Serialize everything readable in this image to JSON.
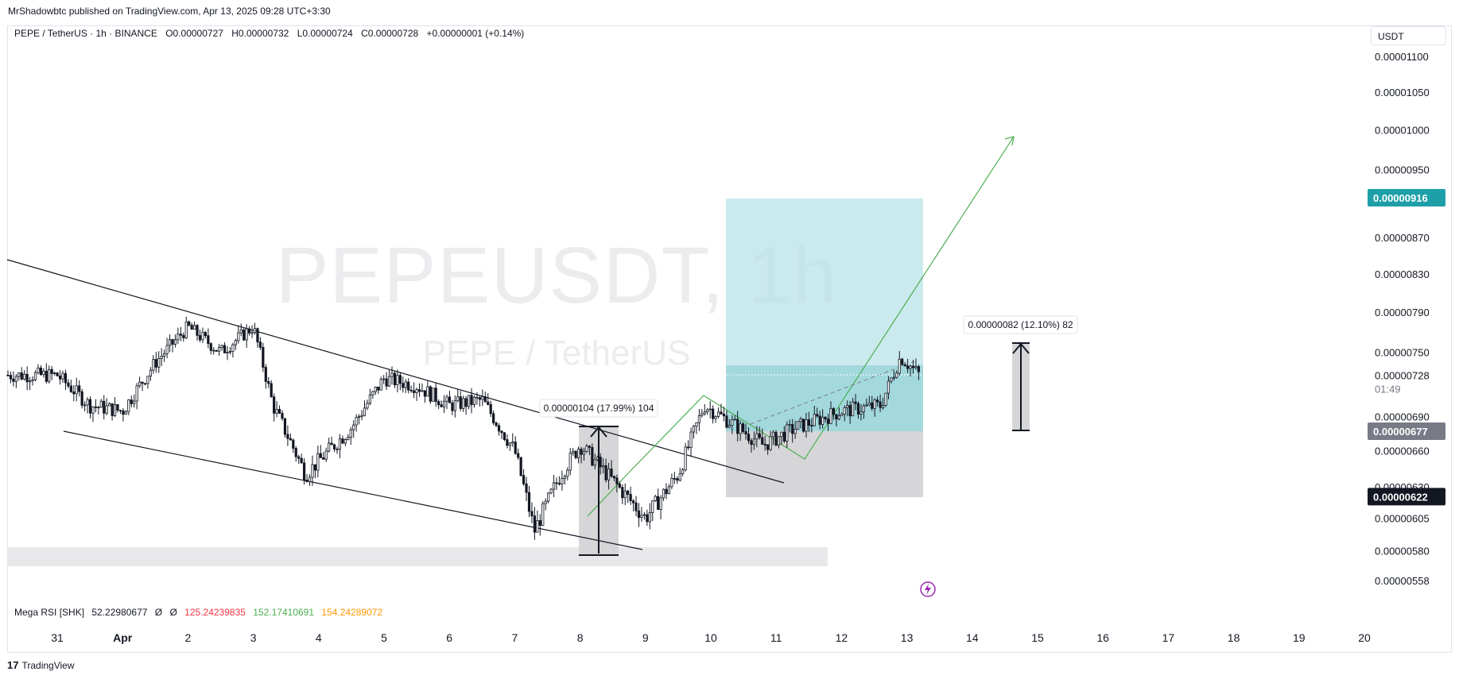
{
  "header": {
    "published": "MrShadowbtc published on TradingView.com, Apr 13, 2025 09:28 UTC+3:30"
  },
  "legend": {
    "symbol": "PEPE / TetherUS · 1h · BINANCE",
    "open": "O0.00000727",
    "high": "H0.00000732",
    "low": "L0.00000724",
    "close": "C0.00000728",
    "change": "+0.00000001 (+0.14%)"
  },
  "currency": "USDT",
  "watermark": {
    "main": "PEPEUSDT, 1h",
    "sub": "PEPE / TetherUS"
  },
  "chart_data": {
    "type": "candlestick",
    "symbol": "PEPEUSDT",
    "interval": "1h",
    "y_axis": {
      "ticks": [
        "0.00001100",
        "0.00001050",
        "0.00001000",
        "0.00000950",
        "0.00000870",
        "0.00000830",
        "0.00000790",
        "0.00000750",
        "0.00000728",
        "0.00000690",
        "0.00000660",
        "0.00000630",
        "0.00000605",
        "0.00000580",
        "0.00000558"
      ],
      "scale": "log"
    },
    "x_axis": {
      "ticks": [
        "31",
        "Apr",
        "2",
        "3",
        "4",
        "5",
        "6",
        "7",
        "8",
        "9",
        "10",
        "11",
        "12",
        "13",
        "14",
        "15",
        "16",
        "17",
        "18",
        "19",
        "20"
      ]
    },
    "price_tags": [
      {
        "value": "0.00000916",
        "color": "#1e9fa8"
      },
      {
        "value": "0.00000728",
        "sub": "01:49",
        "color": "#ffffff",
        "text_color": "#131722"
      },
      {
        "value": "0.00000677",
        "color": "#787b86"
      },
      {
        "value": "0.00000622",
        "color": "#131722"
      }
    ],
    "measurements": [
      {
        "text": "0.00000104 (17.99%) 104"
      },
      {
        "text": "0.00000082 (12.10%) 82"
      }
    ],
    "close_path": [
      {
        "t": "31",
        "v": 7.28e-06
      },
      {
        "t": "31.5",
        "v": 7e-06
      },
      {
        "t": "Apr",
        "v": 6.95e-06
      },
      {
        "t": "1.5",
        "v": 7.4e-06
      },
      {
        "t": "2",
        "v": 7.75e-06
      },
      {
        "t": "2.5",
        "v": 7.5e-06
      },
      {
        "t": "3",
        "v": 7.75e-06
      },
      {
        "t": "3.3",
        "v": 7e-06
      },
      {
        "t": "3.8",
        "v": 6.4e-06
      },
      {
        "t": "4.5",
        "v": 6.8e-06
      },
      {
        "t": "5",
        "v": 7.25e-06
      },
      {
        "t": "5.5",
        "v": 7.18e-06
      },
      {
        "t": "6",
        "v": 7e-06
      },
      {
        "t": "6.5",
        "v": 7.05e-06
      },
      {
        "t": "7",
        "v": 6.6e-06
      },
      {
        "t": "7.3",
        "v": 5.95e-06
      },
      {
        "t": "7.7",
        "v": 6.4e-06
      },
      {
        "t": "8",
        "v": 6.65e-06
      },
      {
        "t": "8.5",
        "v": 6.35e-06
      },
      {
        "t": "9",
        "v": 6.05e-06
      },
      {
        "t": "9.5",
        "v": 6.4e-06
      },
      {
        "t": "9.9",
        "v": 7e-06
      },
      {
        "t": "10.3",
        "v": 6.85e-06
      },
      {
        "t": "10.8",
        "v": 6.65e-06
      },
      {
        "t": "11.3",
        "v": 6.8e-06
      },
      {
        "t": "12",
        "v": 6.95e-06
      },
      {
        "t": "12.6",
        "v": 7e-06
      },
      {
        "t": "12.9",
        "v": 7.45e-06
      },
      {
        "t": "13.2",
        "v": 7.28e-06
      }
    ]
  },
  "indicator": {
    "name": "Mega RSI [SHK]",
    "value": "52.22980677",
    "sym1": "Ø",
    "sym2": "Ø",
    "v1": "125.24239835",
    "v1_color": "#f23645",
    "v2": "152.17410691",
    "v2_color": "#4caf50",
    "v3": "154.24289072",
    "v3_color": "#ff9800"
  },
  "footer": {
    "brand": "TradingView"
  }
}
